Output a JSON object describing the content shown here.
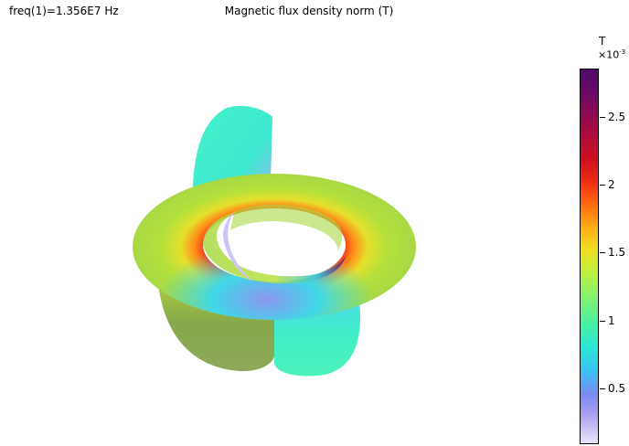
{
  "header": {
    "frequency": "freq(1)=1.356E7 Hz",
    "title": "Magnetic flux density norm (T)"
  },
  "colorbar": {
    "unit": "T",
    "multiplier": "×10",
    "exponent": "-3",
    "ticks": [
      "2.5",
      "2",
      "1.5",
      "1",
      "0.5"
    ]
  }
}
